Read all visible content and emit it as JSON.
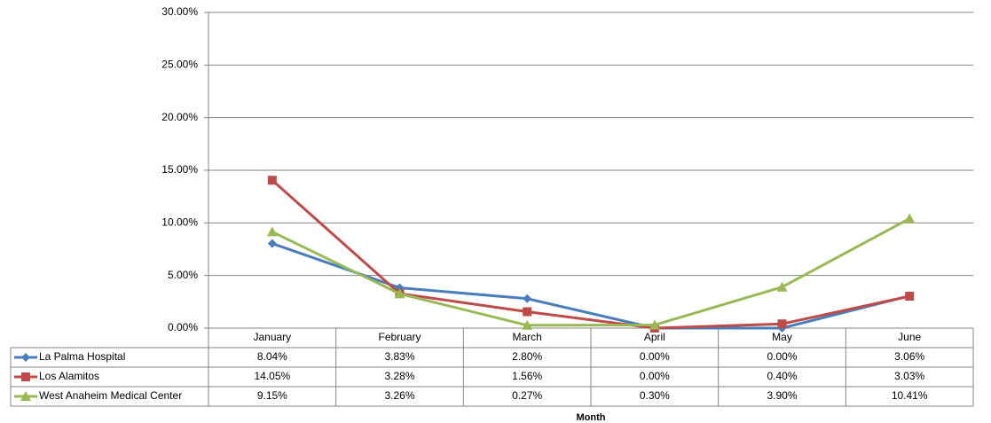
{
  "chart_data": {
    "type": "line",
    "x_label": "Month",
    "categories": [
      "January",
      "February",
      "March",
      "April",
      "May",
      "June"
    ],
    "series": [
      {
        "name": "La Palma Hospital",
        "color": "#4a7ebb",
        "marker": "diamond",
        "values": [
          8.04,
          3.83,
          2.8,
          0.0,
          0.0,
          3.06
        ],
        "value_labels": [
          "8.04%",
          "3.83%",
          "2.80%",
          "0.00%",
          "0.00%",
          "3.06%"
        ]
      },
      {
        "name": "Los Alamitos",
        "color": "#be4b48",
        "marker": "square",
        "values": [
          14.05,
          3.28,
          1.56,
          0.0,
          0.4,
          3.03
        ],
        "value_labels": [
          "14.05%",
          "3.28%",
          "1.56%",
          "0.00%",
          "0.40%",
          "3.03%"
        ]
      },
      {
        "name": "West Anaheim Medical Center",
        "color": "#98b954",
        "marker": "triangle",
        "values": [
          9.15,
          3.26,
          0.27,
          0.3,
          3.9,
          10.41
        ],
        "value_labels": [
          "9.15%",
          "3.26%",
          "0.27%",
          "0.30%",
          "3.90%",
          "10.41%"
        ]
      }
    ],
    "ylim": [
      0,
      30
    ],
    "yticks": [
      {
        "value": 0,
        "label": "0.00%"
      },
      {
        "value": 5,
        "label": "5.00%"
      },
      {
        "value": 10,
        "label": "10.00%"
      },
      {
        "value": 15,
        "label": "15.00%"
      },
      {
        "value": 20,
        "label": "20.00%"
      },
      {
        "value": 25,
        "label": "25.00%"
      },
      {
        "value": 30,
        "label": "30.00%"
      }
    ],
    "grid": true
  }
}
